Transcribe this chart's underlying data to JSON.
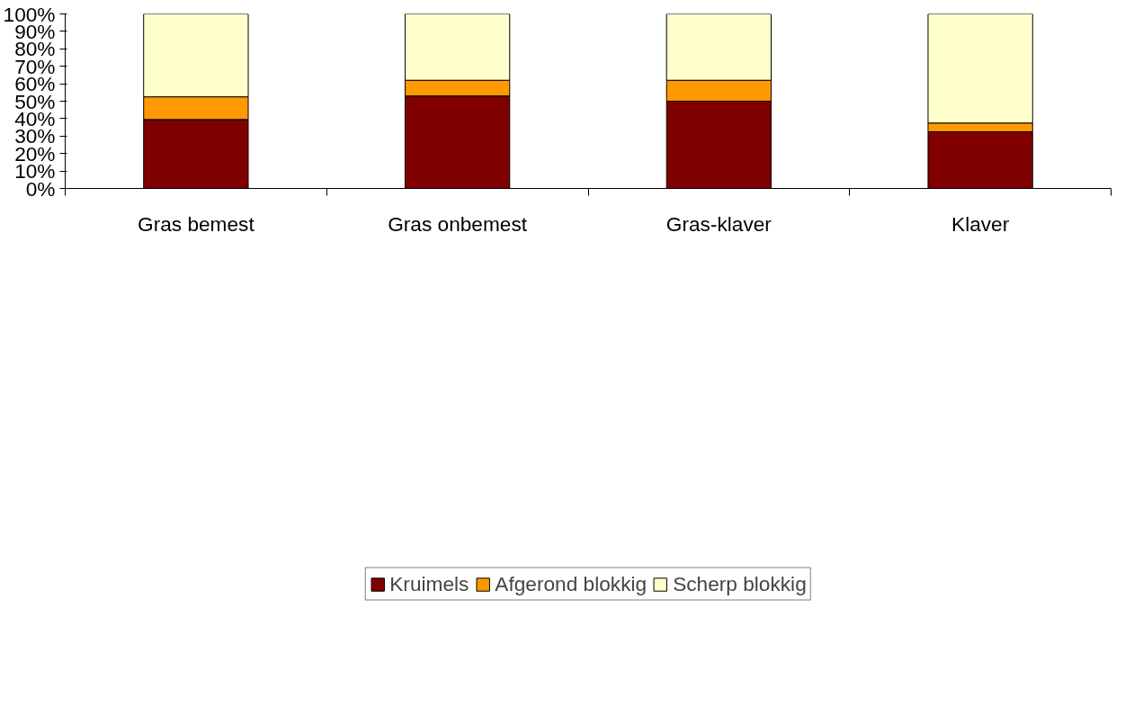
{
  "chart_data": {
    "type": "bar",
    "stacked": true,
    "categories": [
      "Gras bemest",
      "Gras onbemest",
      "Gras-klaver",
      "Klaver"
    ],
    "series": [
      {
        "name": "Kruimels",
        "color": "#800000",
        "values": [
          39.5,
          53,
          50,
          32.5
        ]
      },
      {
        "name": "Afgerond blokkig",
        "color": "#ff9900",
        "values": [
          13,
          9,
          12,
          5
        ]
      },
      {
        "name": "Scherp blokkig",
        "color": "#ffffcc",
        "values": [
          47.5,
          38,
          38,
          62.5
        ]
      }
    ],
    "ylim": [
      0,
      100
    ],
    "yticks": [
      {
        "value": 0,
        "label": "0%"
      },
      {
        "value": 10,
        "label": "10%"
      },
      {
        "value": 20,
        "label": "20%"
      },
      {
        "value": 30,
        "label": "30%"
      },
      {
        "value": 40,
        "label": "40%"
      },
      {
        "value": 50,
        "label": "50%"
      },
      {
        "value": 60,
        "label": "60%"
      },
      {
        "value": 70,
        "label": "70%"
      },
      {
        "value": 80,
        "label": "80%"
      },
      {
        "value": 90,
        "label": "90%"
      },
      {
        "value": 100,
        "label": "100%"
      }
    ],
    "grid": false,
    "legend": "bottom"
  }
}
